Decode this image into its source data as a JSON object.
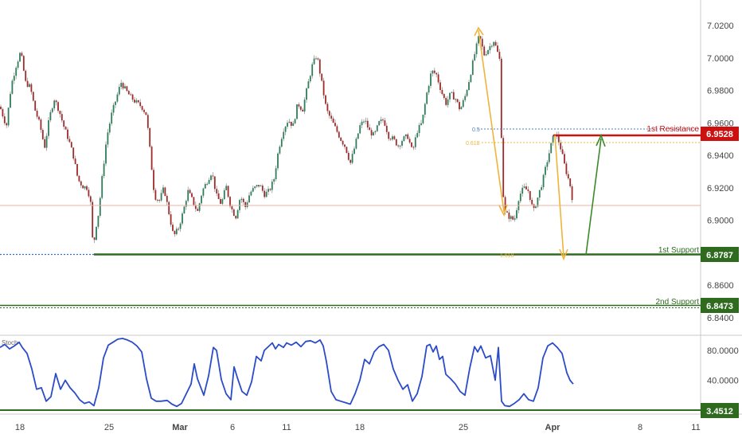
{
  "chart_data": {
    "type": "candlestick",
    "instrument_label": "Stoch",
    "colors": {
      "up": "#2e7d5b",
      "down": "#9e2a2a",
      "wick": "#8a8a8a",
      "support": "#2e6b1f",
      "resistance": "#cc1111",
      "fib_blue": "#4a7fc1",
      "fib_orange": "#f0b43c",
      "stoch_line": "#2b4bc8",
      "up_arrow": "#3b8a2a",
      "hline_pink": "#e8b2a4",
      "blue_dotted": "#3a6fbf"
    },
    "price_axis": {
      "ticks": [
        "7.0200",
        "7.0000",
        "6.9800",
        "6.9600",
        "6.9400",
        "6.9200",
        "6.9000",
        "6.8800",
        "6.8600",
        "6.8400"
      ]
    },
    "stoch_axis": {
      "ticks": [
        "80.0000",
        "40.0000"
      ],
      "current_value": "3.4512"
    },
    "x_axis": {
      "ticks": [
        "18",
        "25",
        "Mar",
        "6",
        "11",
        "18",
        "25",
        "Apr",
        "8",
        "11"
      ]
    },
    "levels": {
      "resistance": {
        "label": "1st Resistance",
        "value": "6.9528"
      },
      "support1": {
        "label": "1st Support",
        "value": "6.8787"
      },
      "support2": {
        "label": "2nd Support",
        "value": "6.8473"
      }
    },
    "fib_labels": {
      "a": "0.5",
      "b": "0.618",
      "c": "1.618"
    },
    "price_series": [
      [
        0,
        6.97
      ],
      [
        8,
        6.958
      ],
      [
        14,
        6.983
      ],
      [
        20,
        6.995
      ],
      [
        26,
        7.004
      ],
      [
        32,
        6.985
      ],
      [
        38,
        6.982
      ],
      [
        44,
        6.968
      ],
      [
        50,
        6.959
      ],
      [
        56,
        6.945
      ],
      [
        62,
        6.963
      ],
      [
        68,
        6.975
      ],
      [
        74,
        6.968
      ],
      [
        80,
        6.958
      ],
      [
        86,
        6.95
      ],
      [
        92,
        6.94
      ],
      [
        98,
        6.925
      ],
      [
        104,
        6.921
      ],
      [
        110,
        6.92
      ],
      [
        114,
        6.91
      ],
      [
        117,
        6.881
      ],
      [
        120,
        6.895
      ],
      [
        124,
        6.905
      ],
      [
        128,
        6.925
      ],
      [
        134,
        6.951
      ],
      [
        140,
        6.965
      ],
      [
        146,
        6.975
      ],
      [
        152,
        6.985
      ],
      [
        158,
        6.98
      ],
      [
        164,
        6.976
      ],
      [
        170,
        6.973
      ],
      [
        178,
        6.97
      ],
      [
        184,
        6.965
      ],
      [
        188,
        6.945
      ],
      [
        194,
        6.915
      ],
      [
        200,
        6.912
      ],
      [
        206,
        6.92
      ],
      [
        212,
        6.905
      ],
      [
        218,
        6.89
      ],
      [
        224,
        6.895
      ],
      [
        230,
        6.905
      ],
      [
        236,
        6.918
      ],
      [
        242,
        6.912
      ],
      [
        248,
        6.905
      ],
      [
        254,
        6.918
      ],
      [
        260,
        6.924
      ],
      [
        266,
        6.93
      ],
      [
        272,
        6.915
      ],
      [
        278,
        6.91
      ],
      [
        284,
        6.921
      ],
      [
        290,
        6.908
      ],
      [
        296,
        6.902
      ],
      [
        302,
        6.915
      ],
      [
        308,
        6.908
      ],
      [
        314,
        6.917
      ],
      [
        320,
        6.92
      ],
      [
        326,
        6.922
      ],
      [
        332,
        6.916
      ],
      [
        338,
        6.918
      ],
      [
        344,
        6.925
      ],
      [
        350,
        6.944
      ],
      [
        356,
        6.956
      ],
      [
        362,
        6.962
      ],
      [
        368,
        6.958
      ],
      [
        374,
        6.972
      ],
      [
        380,
        6.968
      ],
      [
        386,
        6.982
      ],
      [
        392,
        6.995
      ],
      [
        398,
        7.002
      ],
      [
        404,
        6.985
      ],
      [
        410,
        6.968
      ],
      [
        416,
        6.962
      ],
      [
        422,
        6.956
      ],
      [
        428,
        6.95
      ],
      [
        434,
        6.945
      ],
      [
        440,
        6.935
      ],
      [
        446,
        6.946
      ],
      [
        452,
        6.958
      ],
      [
        458,
        6.962
      ],
      [
        464,
        6.955
      ],
      [
        470,
        6.952
      ],
      [
        476,
        6.96
      ],
      [
        482,
        6.962
      ],
      [
        488,
        6.952
      ],
      [
        494,
        6.95
      ],
      [
        500,
        6.946
      ],
      [
        506,
        6.95
      ],
      [
        512,
        6.952
      ],
      [
        518,
        6.942
      ],
      [
        524,
        6.955
      ],
      [
        530,
        6.96
      ],
      [
        536,
        6.978
      ],
      [
        542,
        6.992
      ],
      [
        548,
        6.99
      ],
      [
        554,
        6.98
      ],
      [
        560,
        6.972
      ],
      [
        566,
        6.978
      ],
      [
        572,
        6.975
      ],
      [
        578,
        6.968
      ],
      [
        584,
        6.976
      ],
      [
        590,
        6.988
      ],
      [
        596,
        7.002
      ],
      [
        602,
        7.014
      ],
      [
        608,
        7.002
      ],
      [
        614,
        7.006
      ],
      [
        620,
        7.011
      ],
      [
        624,
        7.005
      ],
      [
        628,
        6.998
      ],
      [
        631,
        6.922
      ],
      [
        634,
        6.905
      ],
      [
        640,
        6.902
      ],
      [
        646,
        6.9
      ],
      [
        652,
        6.915
      ],
      [
        658,
        6.92
      ],
      [
        664,
        6.918
      ],
      [
        670,
        6.905
      ],
      [
        676,
        6.915
      ],
      [
        682,
        6.925
      ],
      [
        688,
        6.938
      ],
      [
        694,
        6.95
      ],
      [
        698,
        6.954
      ],
      [
        704,
        6.945
      ],
      [
        710,
        6.932
      ],
      [
        716,
        6.922
      ],
      [
        720,
        6.91
      ]
    ],
    "stoch_series": [
      [
        0,
        84
      ],
      [
        6,
        88
      ],
      [
        12,
        82
      ],
      [
        18,
        86
      ],
      [
        24,
        91
      ],
      [
        28,
        84
      ],
      [
        34,
        76
      ],
      [
        40,
        55
      ],
      [
        46,
        28
      ],
      [
        52,
        30
      ],
      [
        58,
        12
      ],
      [
        64,
        18
      ],
      [
        70,
        49
      ],
      [
        76,
        28
      ],
      [
        82,
        40
      ],
      [
        88,
        30
      ],
      [
        94,
        23
      ],
      [
        100,
        14
      ],
      [
        106,
        9
      ],
      [
        112,
        11
      ],
      [
        118,
        6
      ],
      [
        124,
        30
      ],
      [
        130,
        70
      ],
      [
        136,
        87
      ],
      [
        142,
        91
      ],
      [
        148,
        95
      ],
      [
        154,
        96
      ],
      [
        160,
        94
      ],
      [
        166,
        91
      ],
      [
        172,
        86
      ],
      [
        178,
        78
      ],
      [
        184,
        42
      ],
      [
        190,
        16
      ],
      [
        196,
        12
      ],
      [
        202,
        12
      ],
      [
        210,
        13
      ],
      [
        216,
        8
      ],
      [
        222,
        5
      ],
      [
        228,
        9
      ],
      [
        234,
        22
      ],
      [
        240,
        35
      ],
      [
        244,
        62
      ],
      [
        248,
        42
      ],
      [
        256,
        20
      ],
      [
        262,
        46
      ],
      [
        268,
        84
      ],
      [
        272,
        80
      ],
      [
        278,
        41
      ],
      [
        284,
        22
      ],
      [
        290,
        14
      ],
      [
        294,
        58
      ],
      [
        298,
        44
      ],
      [
        304,
        25
      ],
      [
        310,
        20
      ],
      [
        316,
        38
      ],
      [
        322,
        72
      ],
      [
        328,
        66
      ],
      [
        332,
        80
      ],
      [
        338,
        86
      ],
      [
        342,
        90
      ],
      [
        346,
        82
      ],
      [
        350,
        88
      ],
      [
        356,
        84
      ],
      [
        360,
        90
      ],
      [
        366,
        87
      ],
      [
        372,
        91
      ],
      [
        378,
        85
      ],
      [
        384,
        92
      ],
      [
        390,
        93
      ],
      [
        396,
        90
      ],
      [
        402,
        94
      ],
      [
        406,
        86
      ],
      [
        410,
        65
      ],
      [
        416,
        25
      ],
      [
        422,
        14
      ],
      [
        428,
        12
      ],
      [
        434,
        10
      ],
      [
        440,
        8
      ],
      [
        446,
        22
      ],
      [
        452,
        40
      ],
      [
        458,
        68
      ],
      [
        464,
        62
      ],
      [
        470,
        78
      ],
      [
        476,
        85
      ],
      [
        482,
        88
      ],
      [
        488,
        80
      ],
      [
        494,
        55
      ],
      [
        500,
        40
      ],
      [
        506,
        28
      ],
      [
        512,
        34
      ],
      [
        518,
        12
      ],
      [
        524,
        22
      ],
      [
        530,
        45
      ],
      [
        536,
        86
      ],
      [
        540,
        88
      ],
      [
        544,
        78
      ],
      [
        548,
        86
      ],
      [
        552,
        68
      ],
      [
        556,
        72
      ],
      [
        560,
        48
      ],
      [
        566,
        42
      ],
      [
        572,
        35
      ],
      [
        578,
        25
      ],
      [
        584,
        20
      ],
      [
        590,
        56
      ],
      [
        596,
        85
      ],
      [
        600,
        78
      ],
      [
        604,
        86
      ],
      [
        610,
        70
      ],
      [
        616,
        73
      ],
      [
        622,
        40
      ],
      [
        626,
        84
      ],
      [
        630,
        12
      ],
      [
        634,
        6
      ],
      [
        640,
        5
      ],
      [
        646,
        9
      ],
      [
        652,
        14
      ],
      [
        658,
        22
      ],
      [
        664,
        14
      ],
      [
        670,
        12
      ],
      [
        676,
        30
      ],
      [
        682,
        70
      ],
      [
        688,
        86
      ],
      [
        694,
        90
      ],
      [
        700,
        84
      ],
      [
        706,
        76
      ],
      [
        712,
        50
      ],
      [
        716,
        40
      ],
      [
        720,
        35
      ]
    ]
  }
}
